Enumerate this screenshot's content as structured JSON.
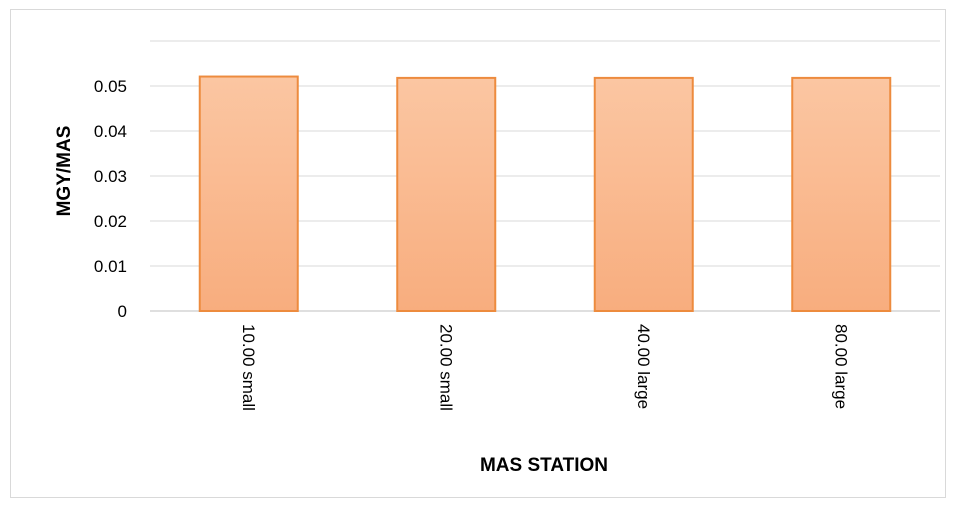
{
  "chart_data": {
    "type": "bar",
    "title": "",
    "xlabel": "MAS STATION",
    "ylabel": "MGY/MAS",
    "categories": [
      "10.00 small",
      "20.00 small",
      "40.00 large",
      "80.00 large"
    ],
    "values": [
      0.0521,
      0.0518,
      0.0518,
      0.0518
    ],
    "ylim": [
      0,
      0.06
    ],
    "yticks": [
      "0",
      "0.01",
      "0.02",
      "0.03",
      "0.04",
      "0.05"
    ],
    "grid": true,
    "legend": "none",
    "colors": {
      "bar_fill_top": "#fbc6a2",
      "bar_fill_bottom": "#f8ad7e",
      "bar_stroke": "#ed8b3e",
      "grid": "#d9d9d9",
      "axis": "#bfbfbf"
    }
  }
}
